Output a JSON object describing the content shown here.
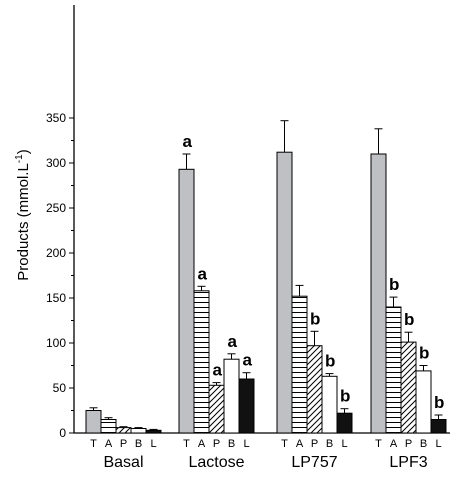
{
  "chart_data": {
    "type": "bar",
    "ylabel": "Products (mmol.L",
    "ylabel_sup": "-1",
    "ylabel_close": ")",
    "ylim": [
      0,
      375
    ],
    "y_ticks": [
      0,
      50,
      100,
      150,
      200,
      250,
      300,
      350
    ],
    "grid": false,
    "groups": [
      "Basal",
      "Lactose",
      "LP757",
      "LPF3"
    ],
    "categories": [
      "T",
      "A",
      "P",
      "B",
      "L"
    ],
    "category_fills": {
      "T": "solid-gray",
      "A": "horizontal-lines",
      "P": "diagonal-hatch",
      "B": "white",
      "L": "solid-black"
    },
    "colors": {
      "gray": "#bfc0c4",
      "black": "#111111",
      "white": "#ffffff"
    },
    "series": [
      {
        "group": "Basal",
        "values": [
          25,
          15,
          6,
          5,
          3
        ],
        "errors": [
          3,
          2,
          1,
          1,
          1
        ],
        "letters": [
          "",
          "",
          "",
          "",
          ""
        ]
      },
      {
        "group": "Lactose",
        "values": [
          293,
          158,
          53,
          82,
          60
        ],
        "errors": [
          17,
          5,
          3,
          6,
          7
        ],
        "letters": [
          "a",
          "a",
          "a",
          "a",
          "a"
        ]
      },
      {
        "group": "LP757",
        "values": [
          312,
          152,
          97,
          63,
          22
        ],
        "errors": [
          35,
          12,
          16,
          3,
          5
        ],
        "letters": [
          "",
          "",
          "b",
          "b",
          "b"
        ]
      },
      {
        "group": "LPF3",
        "values": [
          310,
          140,
          101,
          69,
          15
        ],
        "errors": [
          28,
          11,
          11,
          6,
          5
        ],
        "letters": [
          "",
          "b",
          "b",
          "b",
          "b"
        ]
      }
    ]
  }
}
